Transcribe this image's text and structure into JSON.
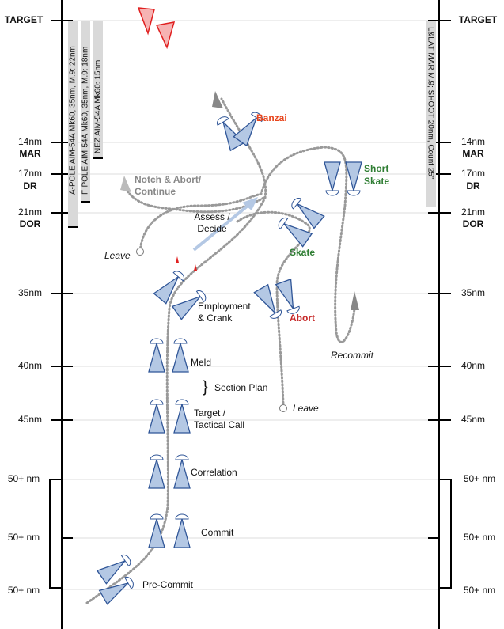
{
  "left_axis": [
    "TARGET",
    "14nm",
    "MAR",
    "17nm",
    "DR",
    "21nm",
    "DOR",
    "35nm",
    "40nm",
    "45nm",
    "50+ nm",
    "50+ nm",
    "50+ nm"
  ],
  "right_axis": [
    "TARGET",
    "14nm",
    "MAR",
    "17nm",
    "DR",
    "21nm",
    "DOR",
    "35nm",
    "40nm",
    "45nm",
    "50+ nm",
    "50+ nm",
    "50+ nm"
  ],
  "missile_bars": {
    "a_pole": "A-POLE AIM-54A Mk60, 35nm, M.9: 22nm",
    "f_pole": "F-POLE AIM-54A Mk60, 35nm, M.9: 18nm",
    "nez": "NEZ AIM-54A Mk60: 15nm",
    "lat": "L&LAT MAR M.9; SHOOT 20nm, Count 25\""
  },
  "labels": {
    "banzai": "Banzai",
    "notch_1": "Notch & Abort/",
    "notch_2": "Continue",
    "assess_1": "Assess /",
    "assess_2": "Decide",
    "short_skate_1": "Short",
    "short_skate_2": "Skate",
    "skate": "Skate",
    "leave_1": "Leave",
    "employment_1": "Employment",
    "employment_2": "& Crank",
    "abort": "Abort",
    "recommit": "Recommit",
    "meld": "Meld",
    "section_plan": "Section Plan",
    "leave_2": "Leave",
    "target_1": "Target /",
    "target_2": "Tactical Call",
    "correlation": "Correlation",
    "commit": "Commit",
    "pre_commit": "Pre-Commit"
  }
}
